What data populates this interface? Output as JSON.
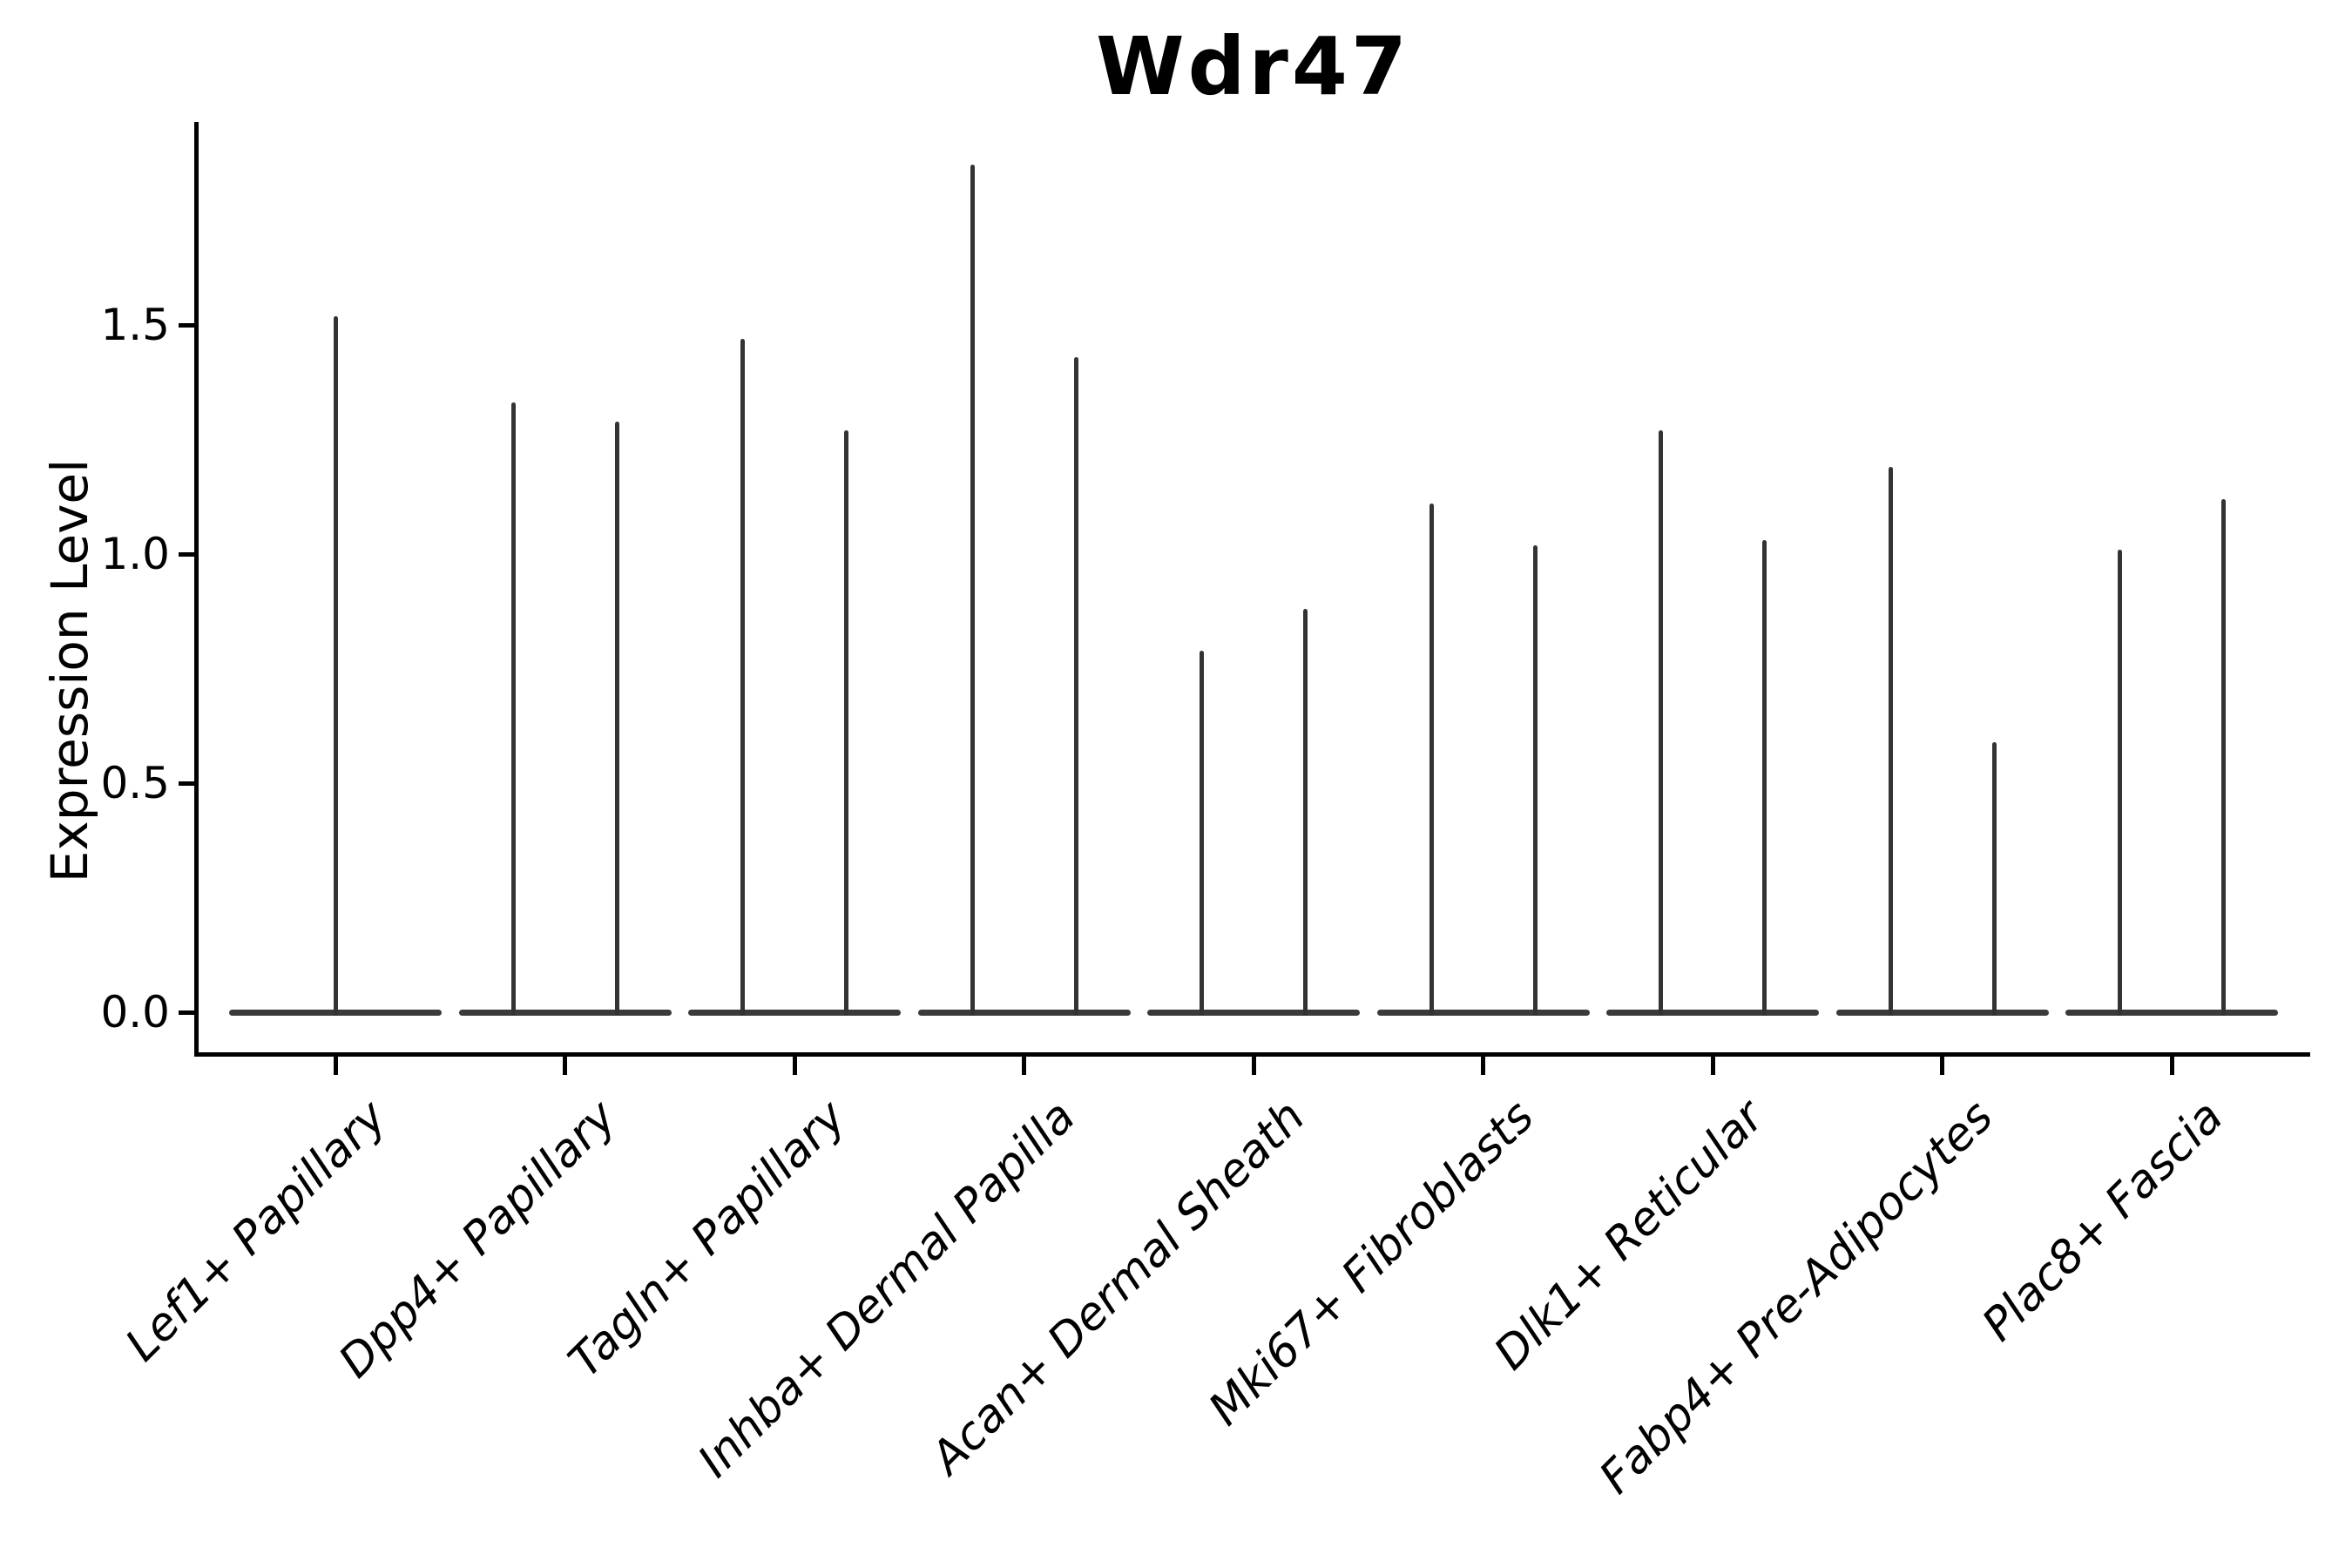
{
  "title": "Wdr47",
  "ylabel": "Expression Level",
  "colors": {
    "background": "#ffffff",
    "spine": "#000000",
    "text": "#000000",
    "violin_line": "#333333",
    "violin_base": "#3a3a3a"
  },
  "chart_data": {
    "type": "violin",
    "title": "Wdr47",
    "xlabel": "",
    "ylabel": "Expression Level",
    "grid": false,
    "legend": false,
    "ylim": [
      -0.091,
      1.943
    ],
    "yticks": [
      0.0,
      0.5,
      1.0,
      1.5
    ],
    "ytick_labels": [
      "0.0",
      "0.5",
      "1.0",
      "1.5"
    ],
    "xtick_rotation": 45,
    "categories": [
      "Lef1+ Papillary",
      "Dpp4+ Papillary",
      "Tagln+ Papillary",
      "Inhba+ Dermal Papilla",
      "Acan+ Dermal Sheath",
      "Mki67+ Fibroblasts",
      "Dlk1+ Reticular",
      "Fabp4+ Pre-Adipocytes",
      "Plac8+ Fascia"
    ],
    "violins": [
      {
        "category": "Lef1+ Papillary",
        "bulk_value": 0.0,
        "peak_maxima": [
          1.52
        ]
      },
      {
        "category": "Dpp4+ Papillary",
        "bulk_value": 0.0,
        "peak_maxima": [
          1.33,
          1.29
        ]
      },
      {
        "category": "Tagln+ Papillary",
        "bulk_value": 0.0,
        "peak_maxima": [
          1.47,
          1.27
        ]
      },
      {
        "category": "Inhba+ Dermal Papilla",
        "bulk_value": 0.0,
        "peak_maxima": [
          1.85,
          1.43
        ]
      },
      {
        "category": "Acan+ Dermal Sheath",
        "bulk_value": 0.0,
        "peak_maxima": [
          0.79,
          0.88
        ]
      },
      {
        "category": "Mki67+ Fibroblasts",
        "bulk_value": 0.0,
        "peak_maxima": [
          1.11,
          1.02
        ]
      },
      {
        "category": "Dlk1+ Reticular",
        "bulk_value": 0.0,
        "peak_maxima": [
          1.27,
          1.03
        ]
      },
      {
        "category": "Fabp4+ Pre-Adipocytes",
        "bulk_value": 0.0,
        "peak_maxima": [
          1.19,
          0.59
        ]
      },
      {
        "category": "Plac8+ Fascia",
        "bulk_value": 0.0,
        "peak_maxima": [
          1.01,
          1.12
        ]
      }
    ]
  }
}
